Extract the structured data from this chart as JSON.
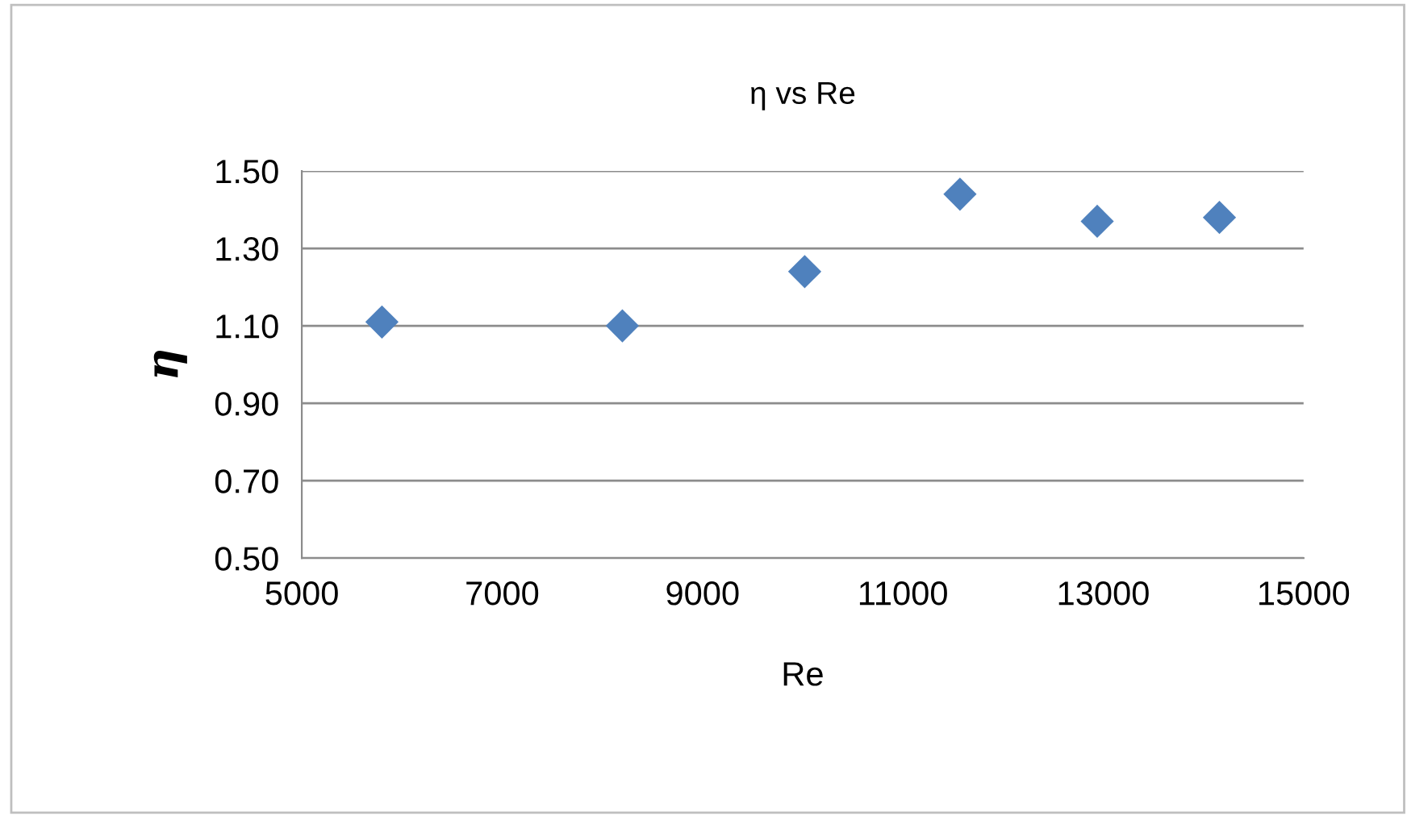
{
  "chart_data": {
    "type": "scatter",
    "title": "η vs Re",
    "xlabel": "Re",
    "ylabel": "η",
    "series": [
      {
        "color": "#4f81bd",
        "x": [
          5800,
          8200,
          10020,
          11570,
          12940,
          14160
        ],
        "values": [
          1.11,
          1.1,
          1.24,
          1.44,
          1.37,
          1.38
        ]
      }
    ],
    "xlim": [
      5000,
      15000
    ],
    "xticks": [
      5000,
      7000,
      9000,
      11000,
      13000,
      15000
    ],
    "ylim": [
      0.5,
      1.5
    ],
    "yticks": [
      {
        "value": 0.5,
        "label": "0.50"
      },
      {
        "value": 0.7,
        "label": "0.70"
      },
      {
        "value": 0.9,
        "label": "0.90"
      },
      {
        "value": 1.1,
        "label": "1.10"
      },
      {
        "value": 1.3,
        "label": "1.30"
      },
      {
        "value": 1.5,
        "label": "1.50"
      }
    ],
    "grid": "y",
    "marker": "diamond"
  }
}
